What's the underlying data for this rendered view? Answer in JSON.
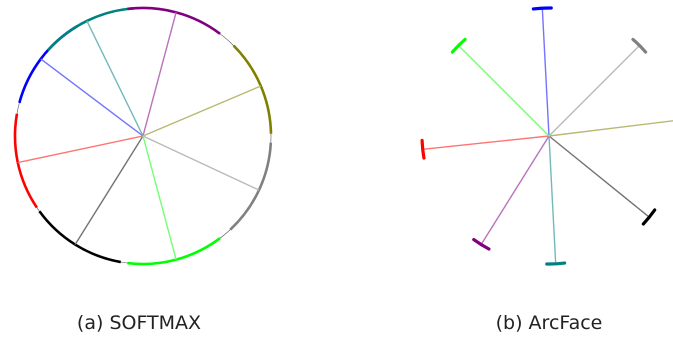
{
  "captions": {
    "softmax": "(a) SOFTMAX",
    "arcface": "(b) ArcFace"
  },
  "classes": [
    {
      "color": "#000000",
      "softmax_deg": 238,
      "arcface_deg": 321
    },
    {
      "color": "#ff0000",
      "softmax_deg": 192,
      "arcface_deg": 186
    },
    {
      "color": "#0000ff",
      "softmax_deg": 143,
      "arcface_deg": 93
    },
    {
      "color": "#008080",
      "softmax_deg": 116,
      "arcface_deg": 273
    },
    {
      "color": "#800080",
      "softmax_deg": 75,
      "arcface_deg": 238
    },
    {
      "color": "#808000",
      "softmax_deg": 23,
      "arcface_deg": 7
    },
    {
      "color": "#808080",
      "softmax_deg": 335,
      "arcface_deg": 45
    },
    {
      "color": "#00ff00",
      "softmax_deg": 285,
      "arcface_deg": 135
    }
  ]
}
